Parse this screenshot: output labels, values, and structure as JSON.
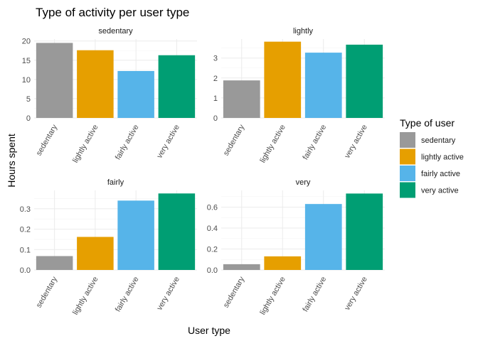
{
  "chart_data": {
    "type": "bar",
    "title": "Type of activity per user type",
    "xlabel": "User type",
    "ylabel": "Hours spent",
    "legend": {
      "title": "Type of user",
      "placement": "right",
      "entries": [
        "sedentary",
        "lightly active",
        "fairly active",
        "very active"
      ]
    },
    "colors": {
      "sedentary": "#999999",
      "lightly active": "#E69F00",
      "fairly active": "#56B4E9",
      "very active": "#009E73"
    },
    "grid": true,
    "categories": [
      "sedentary",
      "lightly active",
      "fairly active",
      "very active"
    ],
    "panels": [
      {
        "name": "sedentary",
        "values": [
          19.5,
          17.6,
          12.2,
          16.3
        ],
        "ylim": [
          0,
          20.5
        ],
        "ticks": [
          0,
          5,
          10,
          15,
          20
        ],
        "tick_labels": [
          "0",
          "5",
          "10",
          "15",
          "20"
        ]
      },
      {
        "name": "lightly",
        "values": [
          1.88,
          3.82,
          3.27,
          3.67
        ],
        "ylim": [
          0,
          3.95
        ],
        "ticks": [
          0,
          1,
          2,
          3
        ],
        "tick_labels": [
          "0",
          "1",
          "2",
          "3"
        ]
      },
      {
        "name": "fairly",
        "values": [
          0.068,
          0.162,
          0.34,
          0.375
        ],
        "ylim": [
          0,
          0.39
        ],
        "ticks": [
          0,
          0.1,
          0.2,
          0.3
        ],
        "tick_labels": [
          "0.0",
          "0.1",
          "0.2",
          "0.3"
        ]
      },
      {
        "name": "very",
        "values": [
          0.055,
          0.13,
          0.63,
          0.73
        ],
        "ylim": [
          0,
          0.76
        ],
        "ticks": [
          0,
          0.2,
          0.4,
          0.6
        ],
        "tick_labels": [
          "0.0",
          "0.2",
          "0.4",
          "0.6"
        ]
      }
    ]
  }
}
